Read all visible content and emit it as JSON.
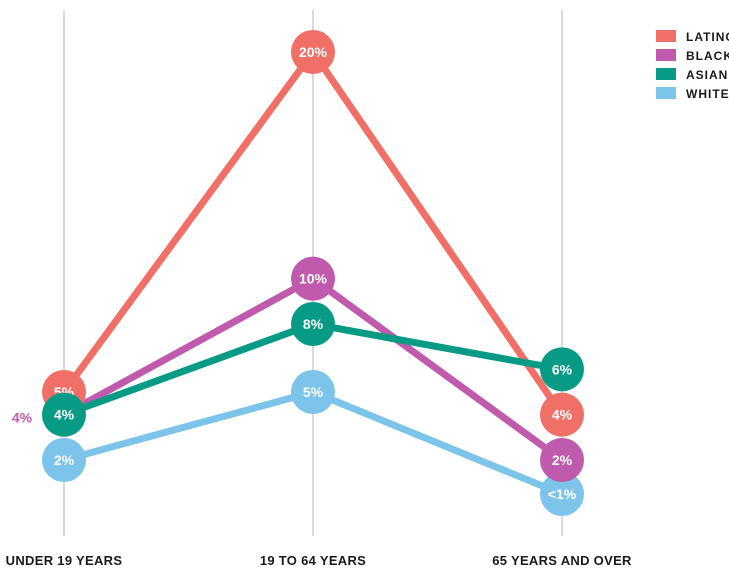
{
  "chart_data": {
    "type": "line",
    "categories": [
      "UNDER 19 YEARS",
      "19 TO 64 YEARS",
      "65 YEARS AND OVER"
    ],
    "series": [
      {
        "name": "LATINO",
        "color": "#f07068",
        "values": [
          5,
          20,
          4
        ],
        "labels": [
          "5%",
          "20%",
          "4%"
        ]
      },
      {
        "name": "BLACK",
        "color": "#c05aac",
        "values": [
          4,
          10,
          2
        ],
        "labels": [
          "4%",
          "10%",
          "2%"
        ]
      },
      {
        "name": "ASIAN",
        "color": "#079b86",
        "values": [
          4,
          8,
          6
        ],
        "labels": [
          "4%",
          "8%",
          "6%"
        ]
      },
      {
        "name": "WHITE",
        "color": "#7cc4ea",
        "values": [
          2,
          5,
          0.5
        ],
        "labels": [
          "2%",
          "5%",
          "<1%"
        ]
      }
    ],
    "annotations": [
      {
        "text": "4%",
        "series": "BLACK",
        "category": "UNDER 19 YEARS",
        "color": "#c05aac"
      }
    ],
    "legend_position": "top-right",
    "grid": "vertical lines at each category"
  }
}
